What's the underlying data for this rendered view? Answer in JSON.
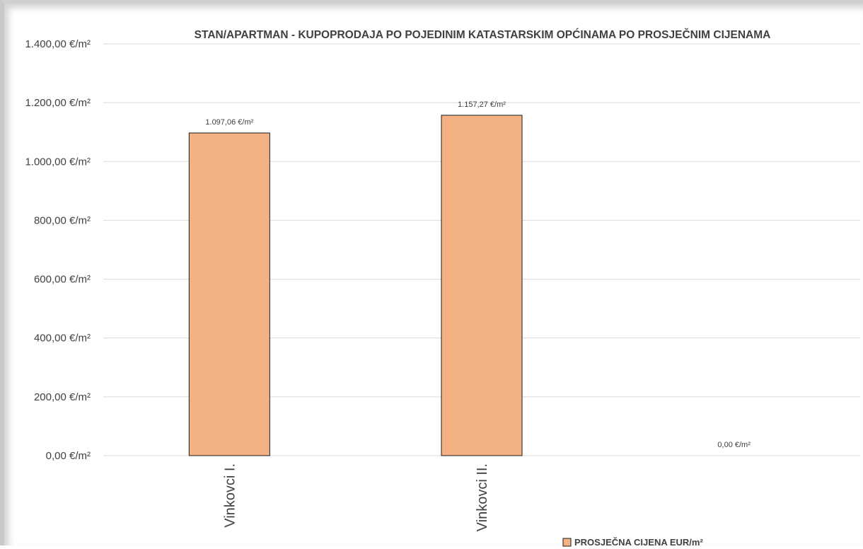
{
  "chart_data": {
    "type": "bar",
    "title": "STAN/APARTMAN - KUPOPRODAJA PO POJEDINIM KATASTARSKIM OPĆINAMA PO PROSJEČNIM CIJENAMA",
    "categories": [
      "Vinkovci I.",
      "Vinkovci II.",
      ""
    ],
    "series": [
      {
        "name": "PROSJEČNA CIJENA EUR/m²",
        "values": [
          1097.06,
          1157.27,
          0
        ],
        "data_labels": [
          "1.097,06 €/m²",
          "1.157,27 €/m²",
          "0,00 €/m²"
        ],
        "color": "#f4b183",
        "border_color": "#1a1a1a"
      }
    ],
    "ylim": [
      0,
      1400
    ],
    "yticks": [
      0,
      200,
      400,
      600,
      800,
      1000,
      1200,
      1400
    ],
    "ytick_labels": [
      "0,00 €/m²",
      "200,00 €/m²",
      "400,00 €/m²",
      "600,00 €/m²",
      "800,00 €/m²",
      "1.000,00 €/m²",
      "1.200,00 €/m²",
      "1.400,00 €/m²"
    ],
    "xlabel": "",
    "ylabel": "",
    "grid": true,
    "gridline_color": "#d9d9d9",
    "legend_position": "bottom-right"
  }
}
